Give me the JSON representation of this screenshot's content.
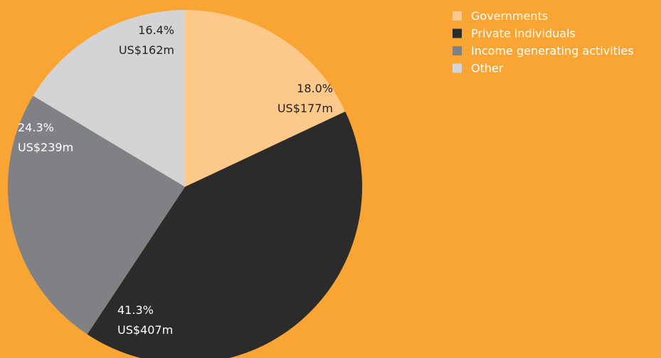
{
  "chart_data": {
    "type": "pie",
    "categories": [
      "Governments",
      "Private individuals",
      "Income generating activities",
      "Other"
    ],
    "values": [
      18.0,
      41.3,
      24.3,
      16.4
    ],
    "value_labels": [
      "18.0%",
      "41.3%",
      "24.3%",
      "16.4%"
    ],
    "amount_labels": [
      "US$177m",
      "US$407m",
      "US$239m",
      "US$162m"
    ],
    "colors": [
      "#fdc98a",
      "#2b2b2b",
      "#808184",
      "#d4d4d6"
    ],
    "legend": "top-right"
  }
}
